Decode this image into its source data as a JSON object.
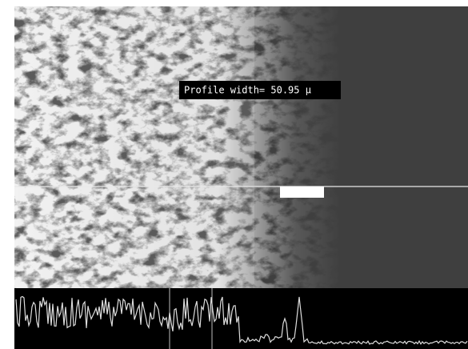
{
  "overlay": {
    "label": "Profile width= 50.95 μ"
  }
}
